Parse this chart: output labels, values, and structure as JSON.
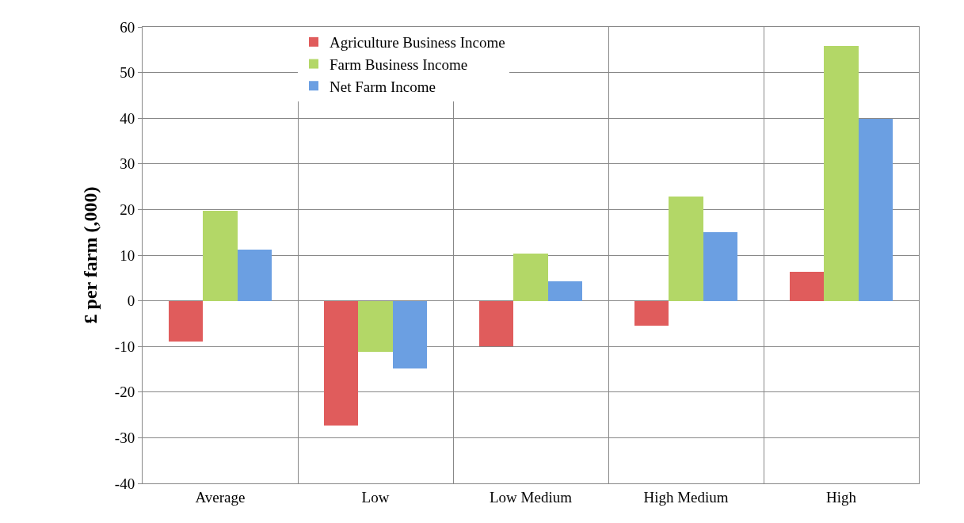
{
  "chart_data": {
    "type": "bar",
    "ylabel": "£ per farm (,000)",
    "categories": [
      "Average",
      "Low",
      "Low Medium",
      "High Medium",
      "High"
    ],
    "series": [
      {
        "name": "Agriculture Business Income",
        "color": "#e05c5c",
        "values": [
          -9,
          -27.3,
          -10,
          -5.4,
          6.4
        ]
      },
      {
        "name": "Farm Business Income",
        "color": "#b3d767",
        "values": [
          19.8,
          -11.1,
          10.4,
          22.8,
          55.8
        ]
      },
      {
        "name": "Net Farm Income",
        "color": "#6b9fe2",
        "values": [
          11.3,
          -14.8,
          4.2,
          15,
          39.8
        ]
      }
    ],
    "ylim": [
      -40,
      60
    ],
    "yticks": [
      -40,
      -30,
      -20,
      -10,
      0,
      10,
      20,
      30,
      40,
      50,
      60
    ],
    "grid": true,
    "legend": "top"
  }
}
